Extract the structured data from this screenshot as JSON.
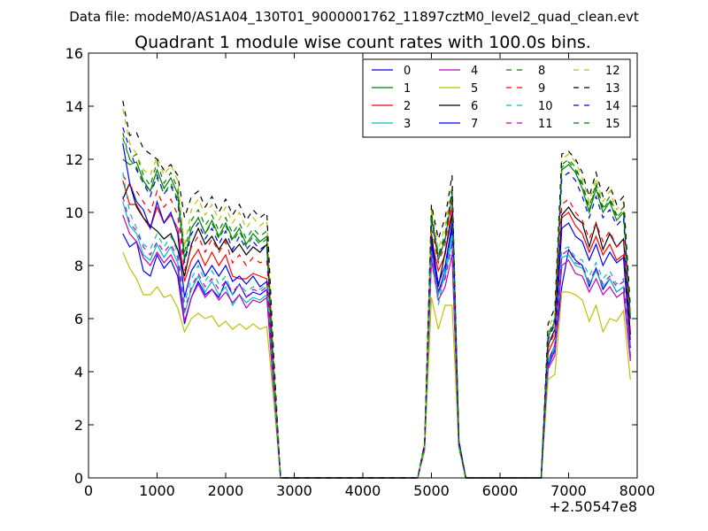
{
  "chart_data": {
    "type": "line",
    "suptitle": "Data file: modeM0/AS1A04_130T01_9000001762_11897cztM0_level2_quad_clean.evt",
    "title": "Quadrant 1 module wise count rates with 100.0s bins.",
    "xlabel": "",
    "ylabel": "",
    "x_offset_label": "+2.50547e8",
    "xlim": [
      0,
      8000
    ],
    "ylim": [
      0,
      16
    ],
    "xticks": [
      "0",
      "1000",
      "2000",
      "3000",
      "4000",
      "5000",
      "6000",
      "7000",
      "8000"
    ],
    "yticks": [
      "0",
      "2",
      "4",
      "6",
      "8",
      "10",
      "12",
      "14",
      "16"
    ],
    "grid": false,
    "legend_position": "top-right",
    "legend_columns": 4,
    "x": [
      500,
      600,
      700,
      800,
      900,
      1000,
      1100,
      1200,
      1300,
      1400,
      1500,
      1600,
      1700,
      1800,
      1900,
      2000,
      2100,
      2200,
      2300,
      2400,
      2500,
      2600,
      2700,
      2800,
      4800,
      4900,
      5000,
      5100,
      5200,
      5300,
      5400,
      5500,
      6600,
      6700,
      6800,
      6900,
      7000,
      7100,
      7200,
      7300,
      7400,
      7500,
      7600,
      7700,
      7800,
      7900
    ],
    "series": [
      {
        "name": "0",
        "color": "#0000ff",
        "dash": "solid",
        "values": [
          9.2,
          8.7,
          8.9,
          7.8,
          7.6,
          8.4,
          7.9,
          8.2,
          7.6,
          5.8,
          6.8,
          7.4,
          6.9,
          7.1,
          6.8,
          7.4,
          6.9,
          7.3,
          6.8,
          7.0,
          6.9,
          7.1,
          3.2,
          0,
          0,
          1.2,
          8.8,
          7.0,
          7.8,
          9.4,
          1.3,
          0,
          0,
          4.2,
          4.8,
          7.2,
          8.6,
          8.2,
          8.0,
          7.2,
          7.9,
          7.1,
          7.5,
          7.0,
          7.2,
          4.5
        ]
      },
      {
        "name": "1",
        "color": "#008000",
        "dash": "solid",
        "values": [
          12.0,
          11.8,
          11.9,
          11.2,
          10.8,
          11.6,
          10.9,
          11.3,
          10.7,
          8.2,
          9.4,
          9.8,
          9.2,
          9.7,
          9.1,
          9.6,
          9.0,
          9.4,
          8.8,
          9.2,
          8.9,
          9.1,
          4.1,
          0,
          0,
          1.3,
          9.8,
          8.2,
          9.0,
          10.6,
          1.4,
          0,
          0,
          5.3,
          5.9,
          11.6,
          11.8,
          11.5,
          10.9,
          10.0,
          10.9,
          10.0,
          10.4,
          9.7,
          10.0,
          6.0
        ]
      },
      {
        "name": "2",
        "color": "#ff0000",
        "dash": "solid",
        "values": [
          11.2,
          10.3,
          10.3,
          9.8,
          9.4,
          10.2,
          9.6,
          9.9,
          9.4,
          7.4,
          8.2,
          8.6,
          8.0,
          8.5,
          8.0,
          8.4,
          7.6,
          7.5,
          7.5,
          7.7,
          7.6,
          7.5,
          3.6,
          0,
          0,
          1.2,
          9.0,
          7.8,
          8.4,
          10.2,
          1.3,
          0,
          0,
          4.7,
          5.3,
          9.8,
          10.0,
          9.5,
          9.2,
          8.5,
          9.1,
          8.4,
          8.8,
          8.2,
          8.4,
          5.2
        ]
      },
      {
        "name": "3",
        "color": "#00bfbf",
        "dash": "solid",
        "values": [
          10.4,
          9.5,
          9.2,
          8.4,
          8.2,
          8.8,
          8.3,
          8.7,
          8.1,
          6.2,
          7.1,
          7.6,
          7.0,
          7.4,
          6.9,
          7.2,
          6.5,
          6.9,
          6.6,
          6.8,
          6.7,
          6.9,
          3.3,
          0,
          0,
          1.1,
          8.4,
          6.9,
          7.6,
          9.0,
          1.2,
          0,
          0,
          4.3,
          4.9,
          8.3,
          8.4,
          8.0,
          7.9,
          7.3,
          7.8,
          7.2,
          7.5,
          7.0,
          7.2,
          4.6
        ]
      },
      {
        "name": "4",
        "color": "#bf00bf",
        "dash": "solid",
        "values": [
          9.9,
          9.2,
          8.9,
          8.3,
          8.0,
          8.5,
          8.1,
          8.4,
          7.9,
          5.9,
          6.8,
          7.3,
          6.8,
          7.1,
          6.7,
          7.0,
          6.6,
          6.9,
          6.4,
          6.7,
          6.6,
          6.8,
          3.2,
          0,
          0,
          1.1,
          8.2,
          6.7,
          7.2,
          8.4,
          1.2,
          0,
          0,
          4.1,
          4.6,
          8.0,
          8.2,
          7.7,
          7.6,
          7.0,
          7.5,
          6.9,
          7.2,
          6.8,
          7.0,
          4.4
        ]
      },
      {
        "name": "5",
        "color": "#bfbf00",
        "dash": "solid",
        "values": [
          8.5,
          7.9,
          7.5,
          6.9,
          6.9,
          7.2,
          6.8,
          6.9,
          6.4,
          5.5,
          6.0,
          6.2,
          6.0,
          6.1,
          5.7,
          5.9,
          5.6,
          5.8,
          5.6,
          5.8,
          5.6,
          5.7,
          2.9,
          0,
          0,
          1.0,
          6.8,
          5.6,
          6.5,
          6.5,
          1.1,
          0,
          0,
          3.7,
          3.9,
          7.0,
          7.0,
          6.9,
          6.7,
          5.9,
          6.5,
          5.5,
          6.0,
          5.9,
          6.3,
          3.7
        ]
      },
      {
        "name": "6",
        "color": "#000000",
        "dash": "solid",
        "values": [
          10.5,
          11.1,
          10.2,
          9.8,
          9.5,
          9.3,
          9.0,
          9.2,
          8.6,
          7.6,
          8.8,
          9.4,
          8.8,
          9.1,
          8.6,
          9.0,
          8.5,
          8.8,
          8.4,
          8.7,
          8.5,
          8.8,
          3.9,
          0,
          0,
          1.2,
          9.2,
          7.2,
          8.5,
          9.9,
          1.3,
          0,
          0,
          5.0,
          5.6,
          9.9,
          10.2,
          9.8,
          9.6,
          8.7,
          9.6,
          8.6,
          9.2,
          8.7,
          9.0,
          5.4
        ]
      },
      {
        "name": "7",
        "color": "#0000ff",
        "dash": "solid",
        "values": [
          12.6,
          11.1,
          10.4,
          10.1,
          9.4,
          10.4,
          9.6,
          10.0,
          9.2,
          6.8,
          7.8,
          8.2,
          7.6,
          8.0,
          7.6,
          8.0,
          7.4,
          7.6,
          7.3,
          7.6,
          7.2,
          7.4,
          3.5,
          0,
          0,
          1.2,
          8.9,
          7.3,
          8.0,
          9.6,
          1.3,
          0,
          0,
          4.4,
          5.0,
          9.4,
          9.6,
          9.1,
          8.9,
          8.2,
          8.8,
          8.0,
          8.5,
          8.1,
          8.3,
          4.9
        ]
      },
      {
        "name": "8",
        "color": "#008000",
        "dash": "dashed",
        "values": [
          13.0,
          12.0,
          12.2,
          11.4,
          11.0,
          11.9,
          11.1,
          11.5,
          10.9,
          8.5,
          9.7,
          10.1,
          9.5,
          9.9,
          9.3,
          9.8,
          9.2,
          9.6,
          9.0,
          9.4,
          9.1,
          9.3,
          4.2,
          0,
          0,
          1.3,
          10.0,
          8.4,
          9.2,
          10.8,
          1.4,
          0,
          0,
          5.4,
          6.0,
          11.8,
          12.0,
          11.7,
          11.1,
          10.2,
          11.1,
          10.2,
          10.6,
          9.9,
          10.2,
          6.1
        ]
      },
      {
        "name": "9",
        "color": "#ff0000",
        "dash": "dashed",
        "values": [
          11.4,
          11.0,
          10.8,
          10.4,
          10.0,
          10.8,
          10.2,
          10.5,
          9.9,
          7.8,
          8.7,
          9.1,
          8.5,
          9.0,
          8.5,
          8.9,
          8.1,
          8.4,
          8.0,
          8.3,
          8.1,
          8.2,
          3.8,
          0,
          0,
          1.2,
          9.4,
          8.1,
          8.8,
          10.5,
          1.3,
          0,
          0,
          4.9,
          5.5,
          10.3,
          10.5,
          10.0,
          9.7,
          9.0,
          9.6,
          8.9,
          9.3,
          8.7,
          8.9,
          5.5
        ]
      },
      {
        "name": "10",
        "color": "#00bfbf",
        "dash": "dashed",
        "values": [
          11.5,
          10.0,
          9.4,
          8.8,
          8.6,
          9.2,
          8.7,
          9.1,
          8.5,
          6.6,
          7.5,
          8.0,
          7.4,
          7.8,
          7.3,
          7.6,
          6.9,
          7.3,
          7.0,
          7.2,
          7.1,
          7.3,
          3.4,
          0,
          0,
          1.1,
          8.6,
          6.5,
          7.9,
          9.2,
          1.2,
          0,
          0,
          4.4,
          5.0,
          8.6,
          8.7,
          8.3,
          8.2,
          7.6,
          8.1,
          7.5,
          7.8,
          7.3,
          7.5,
          4.8
        ]
      },
      {
        "name": "11",
        "color": "#bf00bf",
        "dash": "dashed",
        "values": [
          10.6,
          9.6,
          9.3,
          8.7,
          8.4,
          8.9,
          8.5,
          8.8,
          8.3,
          6.3,
          7.2,
          7.7,
          7.2,
          7.5,
          7.1,
          7.4,
          7.0,
          7.3,
          6.8,
          7.1,
          7.0,
          7.2,
          3.3,
          0,
          0,
          1.1,
          8.5,
          7.0,
          7.5,
          8.8,
          1.2,
          0,
          0,
          4.3,
          4.8,
          8.4,
          8.6,
          8.1,
          8.0,
          7.4,
          7.9,
          7.3,
          7.6,
          7.2,
          7.4,
          4.6
        ]
      },
      {
        "name": "12",
        "color": "#bfbf00",
        "dash": "dashed",
        "values": [
          13.9,
          12.6,
          12.2,
          11.6,
          11.4,
          12.1,
          11.4,
          11.8,
          11.2,
          8.7,
          10.1,
          10.5,
          9.9,
          10.3,
          9.7,
          10.2,
          9.6,
          10.0,
          9.4,
          9.8,
          9.5,
          9.7,
          4.4,
          0,
          0,
          1.3,
          10.2,
          8.6,
          9.5,
          11.0,
          1.4,
          0,
          0,
          5.6,
          6.2,
          12.0,
          12.2,
          11.9,
          11.3,
          10.4,
          11.3,
          10.4,
          10.8,
          10.1,
          10.4,
          6.3
        ]
      },
      {
        "name": "13",
        "color": "#000000",
        "dash": "dashed",
        "values": [
          14.2,
          12.9,
          13.0,
          12.4,
          12.2,
          12.0,
          11.6,
          11.8,
          11.4,
          9.8,
          10.6,
          10.8,
          10.2,
          10.6,
          10.0,
          10.5,
          9.9,
          10.3,
          9.7,
          10.1,
          9.8,
          10.0,
          4.6,
          0,
          0,
          1.3,
          10.3,
          9.0,
          9.8,
          11.4,
          1.4,
          0,
          0,
          5.8,
          6.4,
          12.2,
          12.3,
          12.0,
          11.5,
          10.6,
          11.5,
          10.6,
          11.0,
          10.3,
          10.6,
          6.4
        ]
      },
      {
        "name": "14",
        "color": "#0000ff",
        "dash": "dashed",
        "values": [
          13.2,
          12.4,
          11.6,
          11.1,
          10.6,
          11.4,
          10.7,
          11.0,
          10.4,
          8.1,
          9.2,
          9.6,
          9.0,
          9.4,
          8.8,
          9.3,
          8.6,
          9.1,
          8.6,
          8.9,
          8.6,
          8.8,
          4.0,
          0,
          0,
          1.3,
          9.7,
          8.3,
          9.0,
          10.8,
          1.4,
          0,
          0,
          5.2,
          5.8,
          11.3,
          11.5,
          11.2,
          10.6,
          9.8,
          10.6,
          9.8,
          10.1,
          9.5,
          9.8,
          5.8
        ]
      },
      {
        "name": "15",
        "color": "#008000",
        "dash": "dashed",
        "values": [
          12.8,
          12.0,
          11.7,
          11.1,
          10.8,
          11.3,
          10.7,
          11.1,
          10.5,
          8.3,
          9.4,
          9.8,
          9.2,
          9.6,
          9.0,
          9.5,
          8.9,
          9.3,
          8.7,
          9.1,
          8.8,
          9.0,
          4.1,
          0,
          0,
          1.3,
          9.9,
          8.3,
          9.1,
          10.9,
          1.4,
          0,
          0,
          5.3,
          5.9,
          11.7,
          11.9,
          11.6,
          11.0,
          10.1,
          11.0,
          10.1,
          10.5,
          9.8,
          10.1,
          6.0
        ]
      }
    ]
  }
}
